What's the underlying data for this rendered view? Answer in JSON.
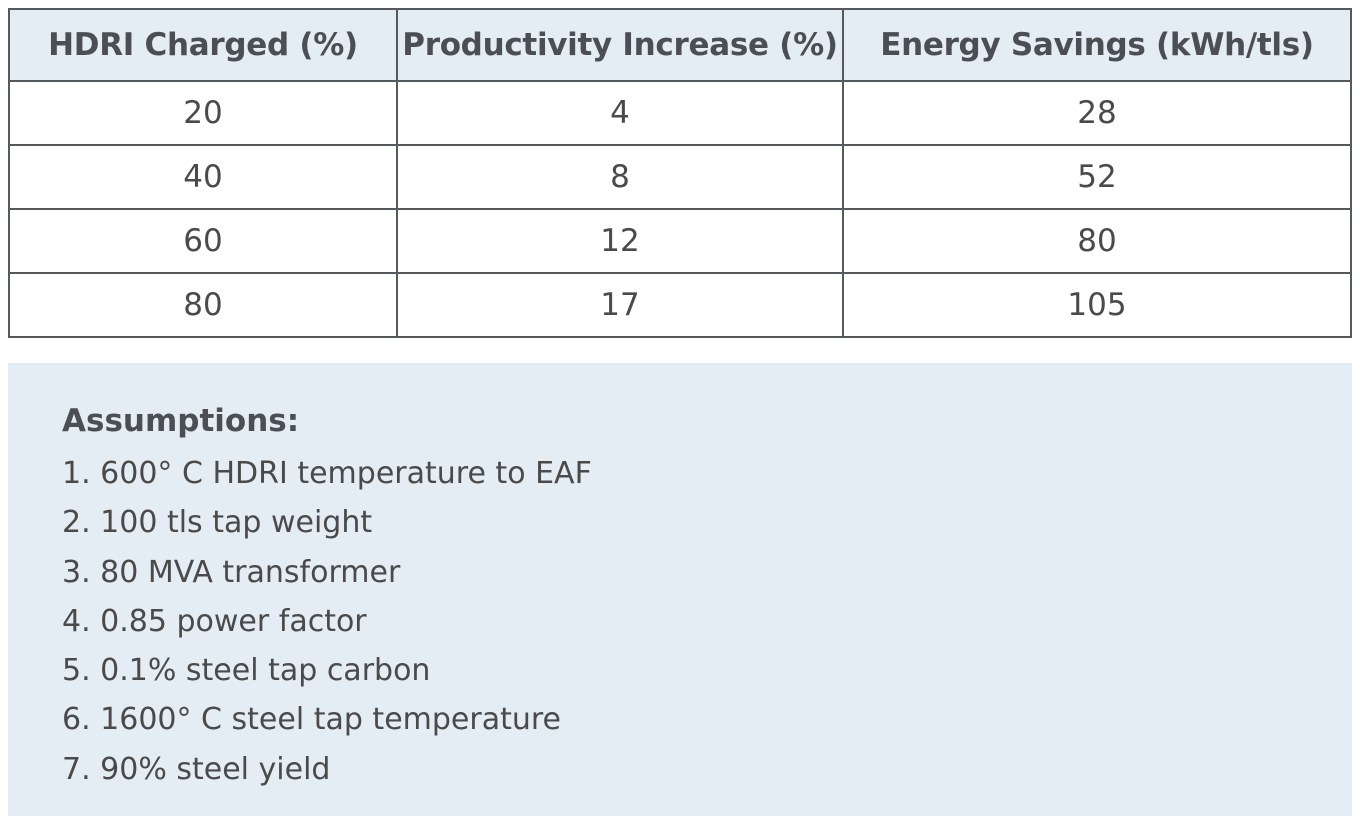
{
  "table": {
    "headers": [
      "HDRI Charged (%)",
      "Productivity Increase (%)",
      "Energy Savings (kWh/tls)"
    ],
    "rows": [
      [
        "20",
        "4",
        "28"
      ],
      [
        "40",
        "8",
        "52"
      ],
      [
        "60",
        "12",
        "80"
      ],
      [
        "80",
        "17",
        "105"
      ]
    ]
  },
  "assumptions": {
    "heading": "Assumptions:",
    "items": [
      "1. 600° C HDRI temperature to EAF",
      "2. 100 tls tap weight",
      "3. 80 MVA transformer",
      "4. 0.85 power factor",
      "5. 0.1% steel tap carbon",
      "6. 1600° C steel tap temperature",
      "7. 90% steel yield"
    ]
  },
  "colors": {
    "header_background": "#e4ecf4",
    "panel_background": "#e4ecf4",
    "border": "#555a5f",
    "text": "#4a4a4a"
  }
}
